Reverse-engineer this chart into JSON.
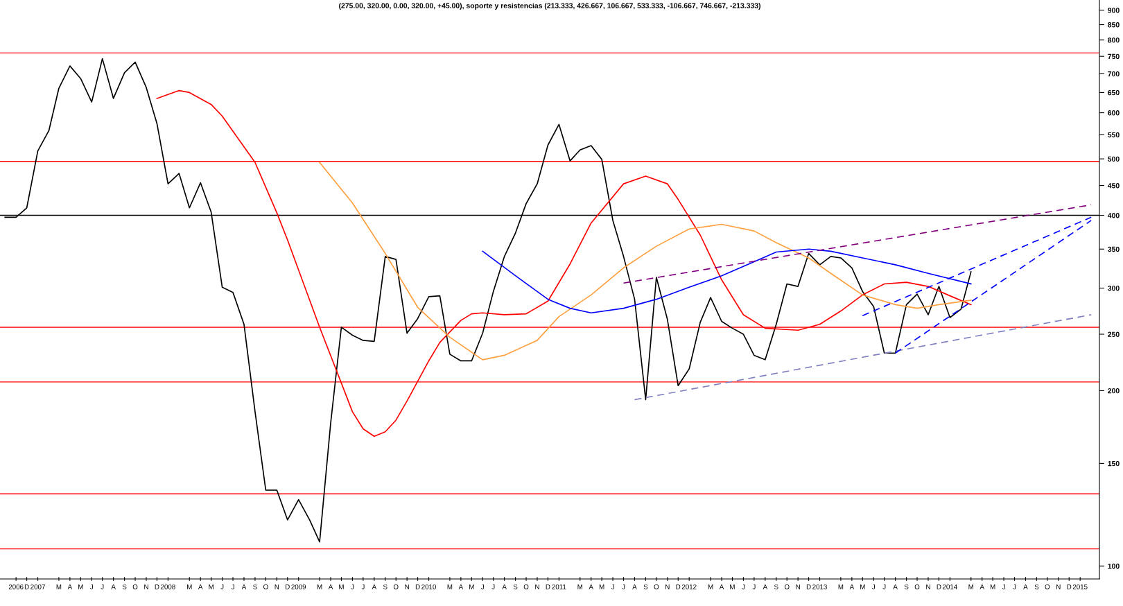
{
  "chart_data": {
    "type": "line",
    "title": "(275.00, 320.00, 0.00, 320.00, +45.00), soporte y resistencias (213.333, 426.667, 106.667, 533.333, -106.667, 746.667, -213.333)",
    "x": [
      "2006-10",
      "2006-11",
      "2006-12",
      "2007-01",
      "2007-02",
      "2007-03",
      "2007-04",
      "2007-05",
      "2007-06",
      "2007-07",
      "2007-08",
      "2007-09",
      "2007-10",
      "2007-11",
      "2007-12",
      "2008-01",
      "2008-02",
      "2008-03",
      "2008-04",
      "2008-05",
      "2008-06",
      "2008-07",
      "2008-08",
      "2008-09",
      "2008-10",
      "2008-11",
      "2008-12",
      "2009-01",
      "2009-02",
      "2009-03",
      "2009-04",
      "2009-05",
      "2009-06",
      "2009-07",
      "2009-08",
      "2009-09",
      "2009-10",
      "2009-11",
      "2009-12",
      "2010-01",
      "2010-02",
      "2010-03",
      "2010-04",
      "2010-05",
      "2010-06",
      "2010-07",
      "2010-08",
      "2010-09",
      "2010-10",
      "2010-11",
      "2010-12",
      "2011-01",
      "2011-02",
      "2011-03",
      "2011-04",
      "2011-05",
      "2011-06",
      "2011-07",
      "2011-08",
      "2011-09",
      "2011-10",
      "2011-11",
      "2011-12",
      "2012-01",
      "2012-02",
      "2012-03",
      "2012-04",
      "2012-05",
      "2012-06",
      "2012-07",
      "2012-08",
      "2012-09",
      "2012-10",
      "2012-11",
      "2012-12",
      "2013-01",
      "2013-02",
      "2013-03",
      "2013-04",
      "2013-05",
      "2013-06",
      "2013-07",
      "2013-08",
      "2013-09",
      "2013-10",
      "2013-11",
      "2013-12",
      "2014-01",
      "2014-02",
      "2014-03"
    ],
    "series": [
      {
        "color": "#000000",
        "values": [
          397,
          397,
          412,
          516,
          559,
          661,
          722,
          687,
          626,
          743,
          635,
          703,
          733,
          663,
          575,
          453,
          472,
          412,
          455,
          405,
          301,
          295,
          260,
          184,
          135,
          135,
          120,
          130,
          120,
          110,
          176,
          257,
          249,
          244,
          243,
          340,
          336,
          251,
          266,
          290,
          291,
          231,
          225,
          225,
          251,
          296,
          340,
          373,
          419,
          453,
          528,
          573,
          496,
          518,
          527,
          499,
          392,
          340,
          287,
          193,
          313,
          265,
          204,
          218,
          262,
          289,
          263,
          256,
          250,
          230,
          226,
          260,
          305,
          302,
          344,
          329,
          340,
          338,
          325,
          296,
          279,
          232,
          232,
          281,
          293,
          270,
          302,
          267,
          276,
          320
        ]
      },
      {
        "color": "#ff0000",
        "x": [
          "2007-12",
          "2008-02",
          "2008-03",
          "2008-05",
          "2008-06",
          "2008-09",
          "2008-11",
          "2008-12",
          "2009-03",
          "2009-05",
          "2009-06",
          "2009-07",
          "2009-08",
          "2009-09",
          "2009-10",
          "2009-11",
          "2010-01",
          "2010-02",
          "2010-04",
          "2010-05",
          "2010-06",
          "2010-08",
          "2010-10",
          "2010-12",
          "2011-02",
          "2011-04",
          "2011-07",
          "2011-09",
          "2011-11",
          "2011-12",
          "2012-02",
          "2012-04",
          "2012-06",
          "2012-08",
          "2012-11",
          "2013-01",
          "2013-03",
          "2013-05",
          "2013-07",
          "2013-09",
          "2013-11",
          "2014-01",
          "2014-03"
        ],
        "values": [
          635,
          655,
          650,
          620,
          592,
          493,
          404,
          363,
          257,
          206,
          184,
          172,
          167,
          170,
          178,
          192,
          225,
          242,
          264,
          271,
          272,
          270,
          271,
          285,
          330,
          388,
          453,
          467,
          453,
          426,
          370,
          310,
          270,
          256,
          254,
          260,
          274,
          292,
          305,
          307,
          302,
          291,
          281
        ]
      },
      {
        "color": "#ffa040",
        "x": [
          "2009-03",
          "2009-06",
          "2009-09",
          "2009-12",
          "2010-03",
          "2010-06",
          "2010-08",
          "2010-11",
          "2011-01",
          "2011-04",
          "2011-07",
          "2011-10",
          "2012-01",
          "2012-04",
          "2012-07",
          "2012-09",
          "2012-12",
          "2013-02",
          "2013-05",
          "2013-08",
          "2013-10",
          "2013-12",
          "2014-03"
        ],
        "values": [
          493,
          420,
          344,
          278,
          247,
          226,
          230,
          244,
          268,
          292,
          325,
          354,
          379,
          386,
          376,
          359,
          338,
          318,
          292,
          281,
          277,
          281,
          286
        ]
      },
      {
        "color": "#0000ff",
        "x": [
          "2010-06",
          "2010-09",
          "2010-12",
          "2011-02",
          "2011-04",
          "2011-07",
          "2011-10",
          "2012-01",
          "2012-04",
          "2012-07",
          "2012-09",
          "2012-12",
          "2013-02",
          "2013-05",
          "2013-08",
          "2013-11",
          "2014-03"
        ],
        "values": [
          347,
          315,
          287,
          277,
          272,
          277,
          287,
          301,
          315,
          333,
          346,
          350,
          347,
          338,
          329,
          318,
          305
        ]
      },
      {
        "color": "#800080",
        "line_style": "dashed",
        "x": [
          "2011-07",
          "2015-02"
        ],
        "values": [
          306,
          417
        ]
      },
      {
        "color": "#8080c0",
        "line_style": "dashed",
        "x": [
          "2011-08",
          "2015-02"
        ],
        "values": [
          193,
          270
        ]
      },
      {
        "color": "#0000ff",
        "line_style": "dashed",
        "x": [
          "2013-05",
          "2015-02"
        ],
        "values": [
          269,
          397
        ]
      },
      {
        "color": "#0000ff",
        "line_style": "dashed",
        "x": [
          "2013-08",
          "2015-02"
        ],
        "values": [
          232,
          392
        ]
      }
    ],
    "ref_lines": [
      {
        "axis": "y",
        "value": 760,
        "color": "#ff0000"
      },
      {
        "axis": "y",
        "value": 495,
        "color": "#ff0000"
      },
      {
        "axis": "y",
        "value": 400,
        "color": "#000000"
      },
      {
        "axis": "y",
        "value": 257,
        "color": "#ff0000"
      },
      {
        "axis": "y",
        "value": 207,
        "color": "#ff0000"
      },
      {
        "axis": "y",
        "value": 133,
        "color": "#ff0000"
      },
      {
        "axis": "y",
        "value": 107,
        "color": "#ff0000"
      }
    ],
    "log": "y",
    "ylim": [
      95,
      937
    ],
    "yticks": [
      100,
      150,
      200,
      250,
      300,
      350,
      400,
      450,
      500,
      550,
      600,
      650,
      700,
      750,
      800,
      850,
      900
    ],
    "xlim": [
      "2006-09-17",
      "2015-02-24"
    ],
    "xticks": [
      {
        "value": "2006-11",
        "label": "2006"
      },
      {
        "value": "2006-12",
        "label": "D"
      },
      {
        "value": "2007-01",
        "label": "2007"
      },
      {
        "value": "2007-03",
        "label": "M"
      },
      {
        "value": "2007-04",
        "label": "A"
      },
      {
        "value": "2007-05",
        "label": "M"
      },
      {
        "value": "2007-06",
        "label": "J"
      },
      {
        "value": "2007-07",
        "label": "J"
      },
      {
        "value": "2007-08",
        "label": "A"
      },
      {
        "value": "2007-09",
        "label": "S"
      },
      {
        "value": "2007-10",
        "label": "O"
      },
      {
        "value": "2007-11",
        "label": "N"
      },
      {
        "value": "2007-12",
        "label": "D"
      },
      {
        "value": "2008-01",
        "label": "2008"
      },
      {
        "value": "2008-03",
        "label": "M"
      },
      {
        "value": "2008-04",
        "label": "A"
      },
      {
        "value": "2008-05",
        "label": "M"
      },
      {
        "value": "2008-06",
        "label": "J"
      },
      {
        "value": "2008-07",
        "label": "J"
      },
      {
        "value": "2008-08",
        "label": "A"
      },
      {
        "value": "2008-09",
        "label": "S"
      },
      {
        "value": "2008-10",
        "label": "O"
      },
      {
        "value": "2008-11",
        "label": "N"
      },
      {
        "value": "2008-12",
        "label": "D"
      },
      {
        "value": "2009-01",
        "label": "2009"
      },
      {
        "value": "2009-03",
        "label": "M"
      },
      {
        "value": "2009-04",
        "label": "A"
      },
      {
        "value": "2009-05",
        "label": "M"
      },
      {
        "value": "2009-06",
        "label": "J"
      },
      {
        "value": "2009-07",
        "label": "J"
      },
      {
        "value": "2009-08",
        "label": "A"
      },
      {
        "value": "2009-09",
        "label": "S"
      },
      {
        "value": "2009-10",
        "label": "O"
      },
      {
        "value": "2009-11",
        "label": "N"
      },
      {
        "value": "2009-12",
        "label": "D"
      },
      {
        "value": "2010-01",
        "label": "2010"
      },
      {
        "value": "2010-03",
        "label": "M"
      },
      {
        "value": "2010-04",
        "label": "A"
      },
      {
        "value": "2010-05",
        "label": "M"
      },
      {
        "value": "2010-06",
        "label": "J"
      },
      {
        "value": "2010-07",
        "label": "J"
      },
      {
        "value": "2010-08",
        "label": "A"
      },
      {
        "value": "2010-09",
        "label": "S"
      },
      {
        "value": "2010-10",
        "label": "O"
      },
      {
        "value": "2010-11",
        "label": "N"
      },
      {
        "value": "2010-12",
        "label": "D"
      },
      {
        "value": "2011-01",
        "label": "2011"
      },
      {
        "value": "2011-03",
        "label": "M"
      },
      {
        "value": "2011-04",
        "label": "A"
      },
      {
        "value": "2011-05",
        "label": "M"
      },
      {
        "value": "2011-06",
        "label": "J"
      },
      {
        "value": "2011-07",
        "label": "J"
      },
      {
        "value": "2011-08",
        "label": "A"
      },
      {
        "value": "2011-09",
        "label": "S"
      },
      {
        "value": "2011-10",
        "label": "O"
      },
      {
        "value": "2011-11",
        "label": "N"
      },
      {
        "value": "2011-12",
        "label": "D"
      },
      {
        "value": "2012-01",
        "label": "2012"
      },
      {
        "value": "2012-03",
        "label": "M"
      },
      {
        "value": "2012-04",
        "label": "A"
      },
      {
        "value": "2012-05",
        "label": "M"
      },
      {
        "value": "2012-06",
        "label": "J"
      },
      {
        "value": "2012-07",
        "label": "J"
      },
      {
        "value": "2012-08",
        "label": "A"
      },
      {
        "value": "2012-09",
        "label": "S"
      },
      {
        "value": "2012-10",
        "label": "O"
      },
      {
        "value": "2012-11",
        "label": "N"
      },
      {
        "value": "2012-12",
        "label": "D"
      },
      {
        "value": "2013-01",
        "label": "2013"
      },
      {
        "value": "2013-03",
        "label": "M"
      },
      {
        "value": "2013-04",
        "label": "A"
      },
      {
        "value": "2013-05",
        "label": "M"
      },
      {
        "value": "2013-06",
        "label": "J"
      },
      {
        "value": "2013-07",
        "label": "J"
      },
      {
        "value": "2013-08",
        "label": "A"
      },
      {
        "value": "2013-09",
        "label": "S"
      },
      {
        "value": "2013-10",
        "label": "O"
      },
      {
        "value": "2013-11",
        "label": "N"
      },
      {
        "value": "2013-12",
        "label": "D"
      },
      {
        "value": "2014-01",
        "label": "2014"
      },
      {
        "value": "2014-03",
        "label": "M"
      },
      {
        "value": "2014-04",
        "label": "A"
      },
      {
        "value": "2014-05",
        "label": "M"
      },
      {
        "value": "2014-06",
        "label": "J"
      },
      {
        "value": "2014-07",
        "label": "J"
      },
      {
        "value": "2014-08",
        "label": "A"
      },
      {
        "value": "2014-09",
        "label": "S"
      },
      {
        "value": "2014-10",
        "label": "O"
      },
      {
        "value": "2014-11",
        "label": "N"
      },
      {
        "value": "2014-12",
        "label": "D"
      },
      {
        "value": "2015-01",
        "label": "2015"
      }
    ],
    "grid": false
  }
}
